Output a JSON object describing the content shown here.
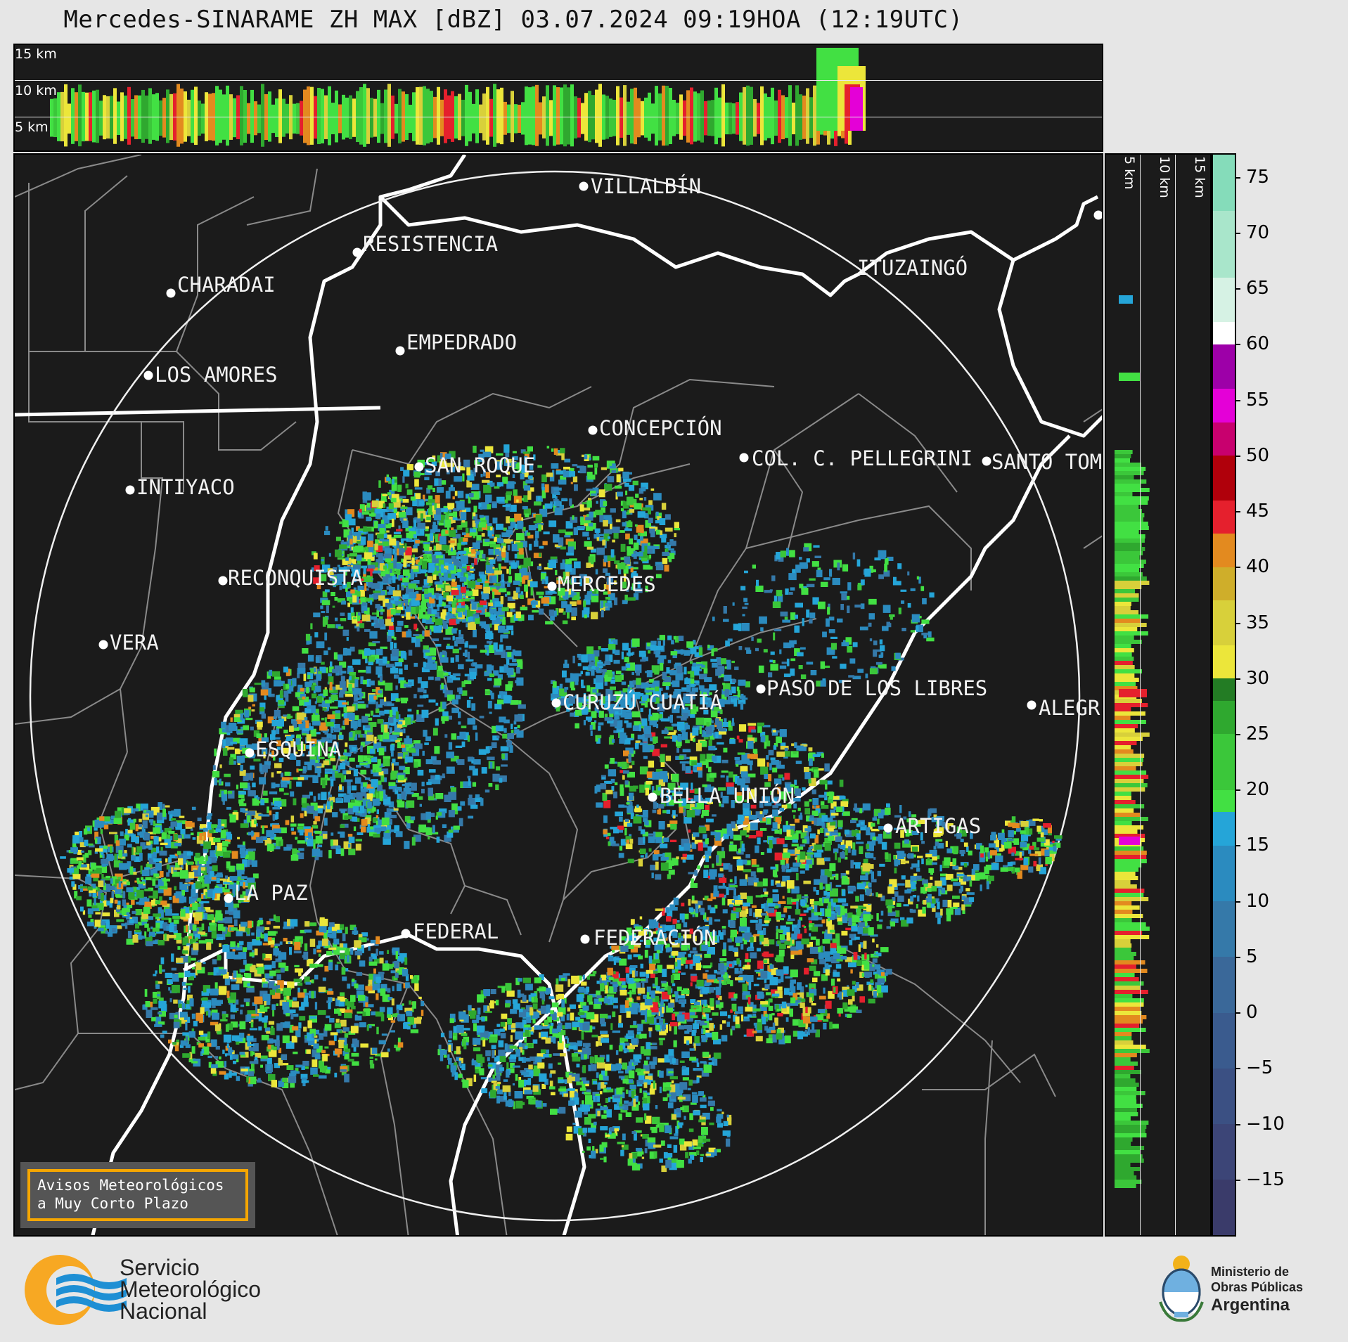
{
  "title": "Mercedes-SINARAME ZH MAX [dBZ] 03.07.2024 09:19HOA (12:19UTC)",
  "top_panel": {
    "height_labels": [
      "15 km",
      "10 km",
      "5 km"
    ]
  },
  "side_panel": {
    "height_labels": [
      "5 km",
      "10 km",
      "15 km"
    ]
  },
  "colorbar": {
    "unit": "dBZ",
    "ticks": [
      "75",
      "70",
      "65",
      "60",
      "55",
      "50",
      "45",
      "40",
      "35",
      "30",
      "25",
      "20",
      "15",
      "10",
      "5",
      "0",
      "−5",
      "−10",
      "−15"
    ],
    "min": -20,
    "max": 77,
    "bands": [
      {
        "from": -20,
        "to": -15,
        "color": "#3a3b6a"
      },
      {
        "from": -15,
        "to": -10,
        "color": "#3c4577"
      },
      {
        "from": -10,
        "to": -5,
        "color": "#3b5083"
      },
      {
        "from": -5,
        "to": 0,
        "color": "#3a5b8e"
      },
      {
        "from": 0,
        "to": 5,
        "color": "#3a6899"
      },
      {
        "from": 5,
        "to": 10,
        "color": "#3579a9"
      },
      {
        "from": 10,
        "to": 15,
        "color": "#2b8bbf"
      },
      {
        "from": 15,
        "to": 18,
        "color": "#25a5d8"
      },
      {
        "from": 18,
        "to": 20,
        "color": "#42e043"
      },
      {
        "from": 20,
        "to": 25,
        "color": "#3bc73a"
      },
      {
        "from": 25,
        "to": 28,
        "color": "#2fa82f"
      },
      {
        "from": 28,
        "to": 30,
        "color": "#237c24"
      },
      {
        "from": 30,
        "to": 33,
        "color": "#ece63a"
      },
      {
        "from": 33,
        "to": 37,
        "color": "#d8d03a"
      },
      {
        "from": 37,
        "to": 40,
        "color": "#cfae2a"
      },
      {
        "from": 40,
        "to": 43,
        "color": "#e38a1f"
      },
      {
        "from": 43,
        "to": 46,
        "color": "#e5202d"
      },
      {
        "from": 46,
        "to": 50,
        "color": "#b0000b"
      },
      {
        "from": 50,
        "to": 53,
        "color": "#c8006e"
      },
      {
        "from": 53,
        "to": 56,
        "color": "#e400d7"
      },
      {
        "from": 56,
        "to": 60,
        "color": "#9d00a8"
      },
      {
        "from": 60,
        "to": 62,
        "color": "#ffffff"
      },
      {
        "from": 62,
        "to": 66,
        "color": "#d6f2e4"
      },
      {
        "from": 66,
        "to": 72,
        "color": "#a9e6cb"
      },
      {
        "from": 72,
        "to": 77,
        "color": "#85dcba"
      }
    ]
  },
  "cities": [
    {
      "name": "VILLALBÍN"
    },
    {
      "name": "RESISTENCIA"
    },
    {
      "name": "CHARADAI"
    },
    {
      "name": "ITUZAINGÓ"
    },
    {
      "name": "EMPEDRADO"
    },
    {
      "name": "LOS AMORES"
    },
    {
      "name": "CONCEPCIÓN"
    },
    {
      "name": "SAN ROQUE"
    },
    {
      "name": "COL. C. PELLEGRINI"
    },
    {
      "name": "SANTO TOM"
    },
    {
      "name": "INTIYACO"
    },
    {
      "name": "RECONQUISTA"
    },
    {
      "name": "MERCEDES"
    },
    {
      "name": "VERA"
    },
    {
      "name": "PASO DE LOS LIBRES"
    },
    {
      "name": "CURUZÚ CUATIÁ"
    },
    {
      "name": "ALEGR"
    },
    {
      "name": "ESQUINA"
    },
    {
      "name": "BELLA UNIÓN"
    },
    {
      "name": "ARTIGAS"
    },
    {
      "name": "LA PAZ"
    },
    {
      "name": "FEDERAL"
    },
    {
      "name": "FEDERACIÓN"
    }
  ],
  "legend": {
    "line1": "Avisos Meteorológicos",
    "line2": "a Muy Corto Plazo"
  },
  "footer": {
    "agency_line1": "Servicio",
    "agency_line2": "Meteorológico",
    "agency_line3": "Nacional",
    "ministry_line1": "Ministerio de",
    "ministry_line2": "Obras Públicas",
    "ministry_line3": "Argentina",
    "colors": {
      "smn_orange": "#f7a823",
      "smn_blue": "#1e8fd4"
    }
  }
}
